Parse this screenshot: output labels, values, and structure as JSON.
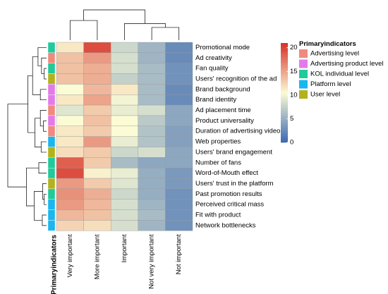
{
  "chart_data": {
    "type": "heatmap",
    "columns": [
      "Very important",
      "More important",
      "Important",
      "Not very important",
      "Not important"
    ],
    "rows": [
      {
        "label": "Promotional mode",
        "group": "KOL individual level",
        "values": [
          11.5,
          19.5,
          8.0,
          5.5,
          2.5
        ]
      },
      {
        "label": "Ad creativity",
        "group": "Advertising level",
        "values": [
          13.5,
          15.5,
          8.5,
          5.5,
          2.5
        ]
      },
      {
        "label": "Fan quality",
        "group": "KOL individual level",
        "values": [
          13.5,
          14.5,
          8.5,
          6.0,
          3.0
        ]
      },
      {
        "label": "Users' recognition of the ad",
        "group": "User level",
        "values": [
          13.5,
          14.5,
          7.5,
          6.0,
          3.0
        ]
      },
      {
        "label": "Brand background",
        "group": "Advertising product level",
        "values": [
          10.5,
          14.0,
          11.5,
          6.0,
          2.5
        ]
      },
      {
        "label": "Brand identity",
        "group": "Advertising product level",
        "values": [
          11.5,
          15.0,
          10.0,
          6.0,
          2.5
        ]
      },
      {
        "label": "Ad placement time",
        "group": "Advertising level",
        "values": [
          9.0,
          13.0,
          9.5,
          8.5,
          4.5
        ]
      },
      {
        "label": "Product universality",
        "group": "Advertising product level",
        "values": [
          10.5,
          13.5,
          10.5,
          7.0,
          4.5
        ]
      },
      {
        "label": "Duration of advertising video",
        "group": "Advertising level",
        "values": [
          11.5,
          13.0,
          10.5,
          6.5,
          4.0
        ]
      },
      {
        "label": "Web properties",
        "group": "Platform level",
        "values": [
          11.5,
          15.5,
          9.5,
          6.5,
          4.0
        ]
      },
      {
        "label": "Users' brand engagement",
        "group": "User level",
        "values": [
          12.0,
          13.0,
          8.0,
          8.5,
          4.5
        ]
      },
      {
        "label": "Number of fans",
        "group": "KOL individual level",
        "values": [
          18.5,
          13.0,
          6.0,
          4.5,
          4.5
        ]
      },
      {
        "label": "Word-of-Mouth effect",
        "group": "KOL individual level",
        "values": [
          19.5,
          11.0,
          9.5,
          5.0,
          3.5
        ]
      },
      {
        "label": "Users' trust in the platform",
        "group": "User level",
        "values": [
          15.5,
          13.0,
          9.0,
          5.0,
          3.5
        ]
      },
      {
        "label": "Past promotion results",
        "group": "KOL individual level",
        "values": [
          16.0,
          14.5,
          8.0,
          5.0,
          3.0
        ]
      },
      {
        "label": "Perceived critical mass",
        "group": "Platform level",
        "values": [
          15.5,
          14.0,
          8.5,
          5.5,
          3.0
        ]
      },
      {
        "label": "Fit with product",
        "group": "Platform level",
        "values": [
          14.0,
          13.5,
          8.5,
          6.0,
          3.0
        ]
      },
      {
        "label": "Network bottlenecks",
        "group": "Platform level",
        "values": [
          12.5,
          12.0,
          8.5,
          5.5,
          3.0
        ]
      }
    ],
    "annotation_title": "Primaryindicators",
    "legend": {
      "title": "Primaryindicators",
      "entries": [
        {
          "name": "Advertising level",
          "color": "#f08a7e"
        },
        {
          "name": "Advertising product level",
          "color": "#e27be8"
        },
        {
          "name": "KOL individual level",
          "color": "#22c99a"
        },
        {
          "name": "Platform level",
          "color": "#19b6ef"
        },
        {
          "name": "User level",
          "color": "#b3b21c"
        }
      ],
      "placement": "right"
    },
    "color_scale": {
      "min": 0,
      "max": 21,
      "ticks": [
        0,
        5,
        10,
        15,
        20
      ],
      "tick_labels": [
        "0",
        "5",
        "10",
        "15",
        "20"
      ],
      "colors": [
        "#3a68b0",
        "#fbfbd5",
        "#d73027"
      ]
    },
    "dendrograms": {
      "row": true,
      "column": true
    }
  }
}
